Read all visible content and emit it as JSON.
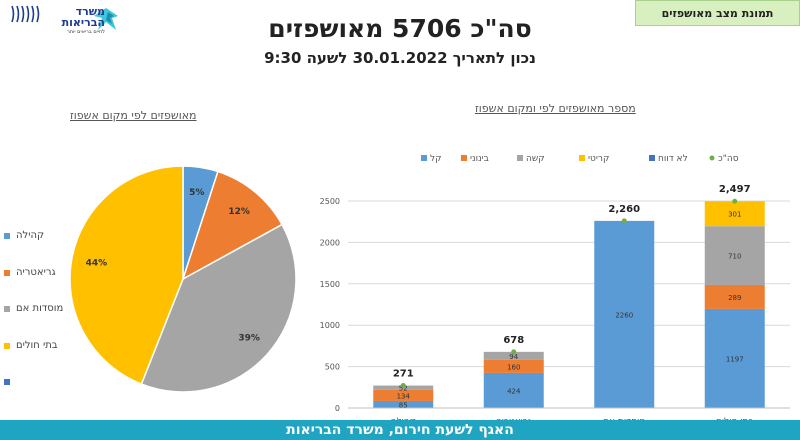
{
  "header": {
    "title": "סה\"כ 5706 מאושפזים",
    "subtitle": "נכון לתאריך 30.01.2022 לשעה 9:30",
    "tag": "תמונת מצב מאושפזים"
  },
  "logo": {
    "line1": "משרד",
    "line2": "הבריאות",
    "line3": "לחיים בריאים יותר"
  },
  "footer": {
    "text": "האגף לשעת חירום, משרד הבריאות"
  },
  "colors": {
    "blue": "#5b9bd5",
    "orange": "#ed7d31",
    "gray": "#a5a5a5",
    "yellow": "#ffc000",
    "darkblue": "#4472c4",
    "green": "#70ad47",
    "footer": "#1fa4c2"
  },
  "chart_data": [
    {
      "type": "pie",
      "title": "מאושפזים לפי מקום אשפוז",
      "labels": [
        "קהילה",
        "גריאטריה",
        "מוסדות אם",
        "בתי חולים"
      ],
      "values": [
        5,
        12,
        39,
        44
      ],
      "value_labels": [
        "5%",
        "12%",
        "39%",
        "44%"
      ],
      "colors": [
        "#5b9bd5",
        "#ed7d31",
        "#a5a5a5",
        "#ffc000"
      ],
      "legend": {
        "position": "left",
        "items": [
          "קהילה",
          "גריאטריה",
          "מוסדות אם",
          "בתי חולים",
          ""
        ],
        "colors": [
          "#5b9bd5",
          "#ed7d31",
          "#a5a5a5",
          "#ffc000",
          "#4472c4"
        ]
      }
    },
    {
      "type": "bar",
      "stacked": true,
      "title": "מספר מאושפזים לפי ומקום אשפוז",
      "categories": [
        "קהילה",
        "גריאטריה",
        "מוסדות אם",
        "בתי חולים"
      ],
      "series": [
        {
          "name": "קל",
          "color": "#5b9bd5",
          "values": [
            85,
            424,
            2260,
            1197
          ],
          "labels": [
            "85",
            "424",
            "2260",
            "1197"
          ]
        },
        {
          "name": "בינוני",
          "color": "#ed7d31",
          "values": [
            134,
            160,
            0,
            289
          ],
          "labels": [
            "134",
            "160",
            "",
            "289"
          ]
        },
        {
          "name": "קשה",
          "color": "#a5a5a5",
          "values": [
            52,
            94,
            0,
            710
          ],
          "labels": [
            "52",
            "94",
            "",
            "710"
          ]
        },
        {
          "name": "קריטי",
          "color": "#ffc000",
          "values": [
            0,
            0,
            0,
            301
          ],
          "labels": [
            "",
            "",
            "",
            "301"
          ]
        },
        {
          "name": "לא דווח",
          "color": "#4472c4",
          "values": [
            0,
            0,
            0,
            0
          ],
          "labels": [
            "",
            "",
            "",
            ""
          ]
        }
      ],
      "totals": {
        "name": "סה\"כ",
        "color": "#70ad47",
        "values": [
          271,
          678,
          2260,
          2497
        ],
        "labels": [
          "271",
          "678",
          "2,260",
          "2,497"
        ]
      },
      "legend_order": [
        "סה\"כ",
        "לא דווח",
        "קריטי",
        "קשה",
        "בינוני",
        "קל"
      ],
      "ylim": [
        0,
        2500
      ],
      "yticks": [
        0,
        500,
        1000,
        1500,
        2000,
        2500
      ],
      "legend_position": "top"
    }
  ]
}
